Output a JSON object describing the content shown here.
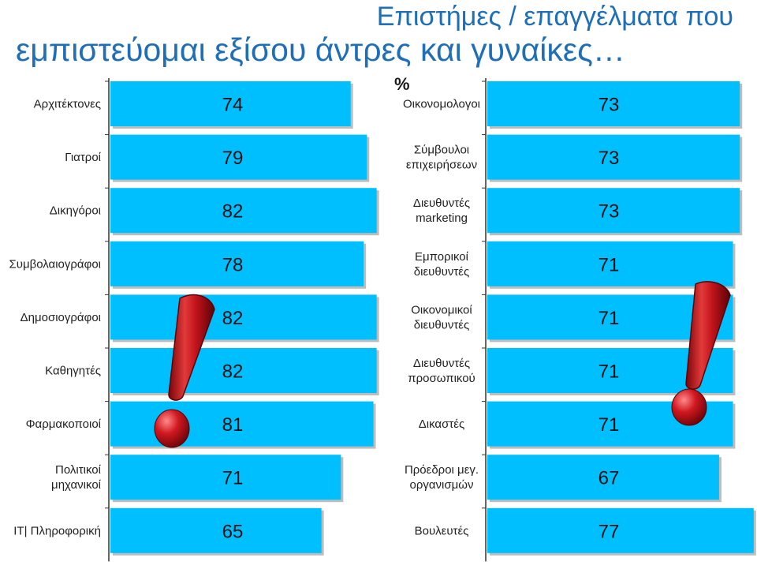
{
  "header": {
    "title_line1": "Επιστήμες / επαγγέλματα που",
    "title_line2": "εμπιστεύομαι εξίσου άντρες και γυναίκες…",
    "unit": "%"
  },
  "colors": {
    "bar": "#00bfff",
    "bar_shadow": "#bdbdbd",
    "title": "#1e6fb8",
    "exclamation": "#c0121b"
  },
  "chart_data": [
    {
      "type": "bar",
      "orientation": "horizontal",
      "categories": [
        [
          "Αρχιτέκτονες"
        ],
        [
          "Γιατροί"
        ],
        [
          "Δικηγόροι"
        ],
        [
          "Συμβολαιογράφοι"
        ],
        [
          "Δημοσιογράφοι"
        ],
        [
          "Καθηγητές"
        ],
        [
          "Φαρμακοποιοί"
        ],
        [
          "Πολιτικοί",
          "μηχανικοί"
        ],
        [
          "IT| Πληροφορική"
        ]
      ],
      "values": [
        74,
        79,
        82,
        78,
        82,
        82,
        81,
        71,
        65
      ],
      "xlim": [
        0,
        85
      ],
      "grid": false,
      "legend": "none"
    },
    {
      "type": "bar",
      "orientation": "horizontal",
      "categories": [
        [
          "Οικονομολογοι"
        ],
        [
          "Σύμβουλοι",
          "επιχειρήσεων"
        ],
        [
          "Διευθυντές",
          "marketing"
        ],
        [
          "Εμπορικοί",
          "διευθυντές"
        ],
        [
          "Οικονομικοί",
          "διευθυντές"
        ],
        [
          "Διευθυντές",
          "προσωπικού"
        ],
        [
          "Δικαστές"
        ],
        [
          "Πρόεδροι μεγ.",
          "οργανισμών"
        ],
        [
          "Βουλευτές"
        ]
      ],
      "values": [
        73,
        73,
        73,
        71,
        71,
        71,
        71,
        67,
        77
      ],
      "xlim": [
        0,
        75
      ],
      "grid": false,
      "legend": "none"
    }
  ]
}
